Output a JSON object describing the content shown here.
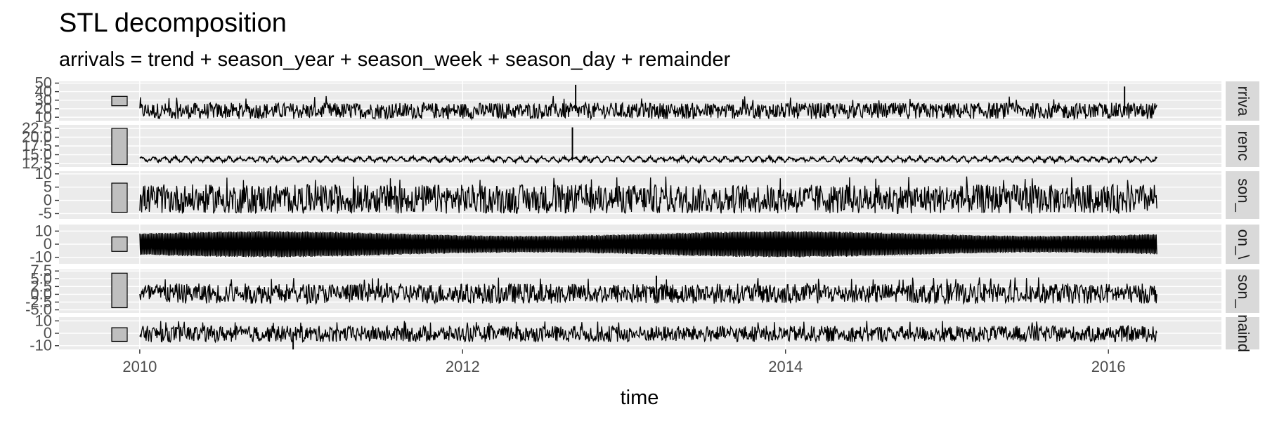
{
  "chart_data": {
    "type": "line",
    "title": "STL decomposition",
    "subtitle": "arrivals = trend + season_year + season_week + season_day + remainder",
    "xlabel": "time",
    "x_ticks": [
      "2010",
      "2012",
      "2014",
      "2016"
    ],
    "x_range": [
      2009.5,
      2016.7
    ],
    "x_data_range": [
      2010.0,
      2016.3
    ],
    "panels": [
      {
        "name": "arrivals",
        "ylim": [
          6,
          52
        ],
        "y_ticks": [
          {
            "value": 50,
            "label": "50"
          },
          {
            "value": 40,
            "label": "40"
          },
          {
            "value": 30,
            "label": "30"
          },
          {
            "value": 20,
            "label": "20"
          },
          {
            "value": 10,
            "label": "10"
          }
        ],
        "scale_bar": [
          23.5,
          34.5
        ],
        "band": {
          "low": 8,
          "high": 27,
          "spike": 35
        },
        "spikes": [
          {
            "x": 2012.7,
            "value": 48
          },
          {
            "x": 2016.1,
            "value": 46
          }
        ]
      },
      {
        "name": "trend",
        "ylim": [
          11.5,
          23.5
        ],
        "y_ticks": [
          {
            "value": 22.5,
            "label": "22.5"
          },
          {
            "value": 20.0,
            "label": "20.0"
          },
          {
            "value": 17.5,
            "label": "17.5"
          },
          {
            "value": 15.0,
            "label": "15.0"
          },
          {
            "value": 12.5,
            "label": "12.5"
          }
        ],
        "scale_bar": [
          12.2,
          22.5
        ],
        "band": {
          "low": 12.8,
          "high": 14.6,
          "spike": 17
        },
        "spikes": [
          {
            "x": 2012.68,
            "value": 22.8
          }
        ]
      },
      {
        "name": "season_year",
        "ylim": [
          -7,
          11
        ],
        "y_ticks": [
          {
            "value": 10,
            "label": "10"
          },
          {
            "value": 5,
            "label": "5"
          },
          {
            "value": 0,
            "label": "0"
          },
          {
            "value": -5,
            "label": "-5"
          }
        ],
        "scale_bar": [
          -4.5,
          6.5
        ],
        "band": {
          "low": -5,
          "high": 6,
          "spike": 9
        },
        "spikes": []
      },
      {
        "name": "season_week",
        "ylim": [
          -15,
          15
        ],
        "y_ticks": [
          {
            "value": 10,
            "label": "10"
          },
          {
            "value": 0,
            "label": "0"
          },
          {
            "value": -10,
            "label": "-10"
          }
        ],
        "scale_bar": [
          -5.5,
          5.5
        ],
        "band": {
          "low": -10,
          "high": 10,
          "spike": 12
        },
        "spikes": []
      },
      {
        "name": "season_day",
        "ylim": [
          -6,
          8
        ],
        "y_ticks": [
          {
            "value": 7.5,
            "label": "7.5"
          },
          {
            "value": 5.0,
            "label": "5.0"
          },
          {
            "value": 2.5,
            "label": "2.5"
          },
          {
            "value": 0.0,
            "label": "0.0"
          },
          {
            "value": -2.5,
            "label": "-2.5"
          },
          {
            "value": -5.0,
            "label": "-5.0"
          }
        ],
        "scale_bar": [
          -4.3,
          6.8
        ],
        "band": {
          "low": -3,
          "high": 3.5,
          "spike": 5.5
        },
        "spikes": [
          {
            "x": 2013.2,
            "value": 6.0
          }
        ]
      },
      {
        "name": "remainder",
        "ylim": [
          -13,
          13
        ],
        "y_ticks": [
          {
            "value": 10,
            "label": "10"
          },
          {
            "value": 0,
            "label": "0"
          },
          {
            "value": -10,
            "label": "-10"
          }
        ],
        "scale_bar": [
          -6.5,
          4.5
        ],
        "band": {
          "low": -7,
          "high": 6,
          "spike": 10
        },
        "spikes": [
          {
            "x": 2010.95,
            "value": -13
          }
        ]
      }
    ],
    "strip_labels": [
      "rriva",
      "renc",
      "son_",
      "on_\\",
      "son_",
      "naind"
    ],
    "grid": true,
    "colors": {
      "line": "#000000",
      "panel_bg": "#ebebeb",
      "grid_major": "#ffffff",
      "strip_bg": "#d9d9d9",
      "scale_bar_fill": "#bfbfbf",
      "tick_text": "#4d4d4d"
    }
  }
}
